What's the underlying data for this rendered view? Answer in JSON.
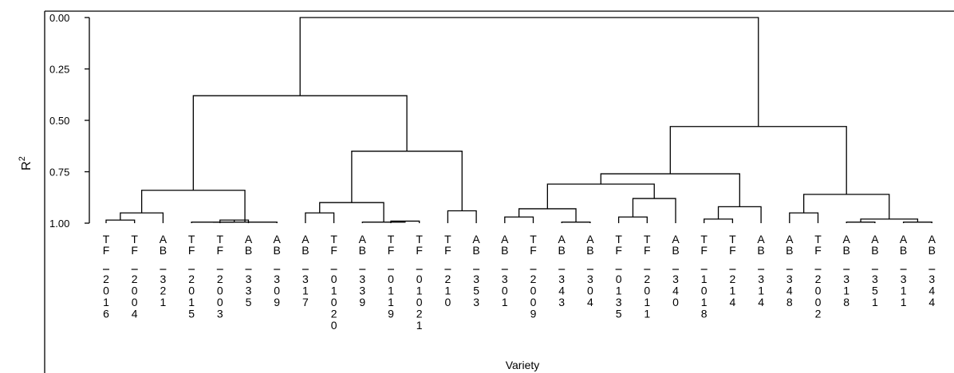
{
  "chart_data": {
    "type": "dendrogram",
    "title": "",
    "xlabel": "Variety",
    "ylabel": "R",
    "ylabel_superscript": "2",
    "yticks": [
      "0.00",
      "0.25",
      "0.50",
      "0.75",
      "1.00"
    ],
    "ylim": [
      0.0,
      1.0
    ],
    "y_inverted": true,
    "leaves": [
      {
        "prefix": "TF",
        "code": "2016"
      },
      {
        "prefix": "TF",
        "code": "2004"
      },
      {
        "prefix": "AB",
        "code": "321"
      },
      {
        "prefix": "TF",
        "code": "2015"
      },
      {
        "prefix": "TF",
        "code": "2003"
      },
      {
        "prefix": "AB",
        "code": "335"
      },
      {
        "prefix": "AB",
        "code": "309"
      },
      {
        "prefix": "AB",
        "code": "317"
      },
      {
        "prefix": "TF",
        "code": "01020"
      },
      {
        "prefix": "AB",
        "code": "339"
      },
      {
        "prefix": "TF",
        "code": "0119"
      },
      {
        "prefix": "TF",
        "code": "01021"
      },
      {
        "prefix": "TF",
        "code": "210"
      },
      {
        "prefix": "AB",
        "code": "353"
      },
      {
        "prefix": "AB",
        "code": "301"
      },
      {
        "prefix": "TF",
        "code": "2009"
      },
      {
        "prefix": "AB",
        "code": "343"
      },
      {
        "prefix": "AB",
        "code": "304"
      },
      {
        "prefix": "TF",
        "code": "0135"
      },
      {
        "prefix": "TF",
        "code": "2011"
      },
      {
        "prefix": "AB",
        "code": "340"
      },
      {
        "prefix": "TF",
        "code": "1018"
      },
      {
        "prefix": "TF",
        "code": "214"
      },
      {
        "prefix": "AB",
        "code": "314"
      },
      {
        "prefix": "AB",
        "code": "348"
      },
      {
        "prefix": "TF",
        "code": "2002"
      },
      {
        "prefix": "AB",
        "code": "318"
      },
      {
        "prefix": "AB",
        "code": "351"
      },
      {
        "prefix": "AB",
        "code": "311"
      },
      {
        "prefix": "AB",
        "code": "344"
      }
    ],
    "merges": [
      {
        "a": 0,
        "b": 1,
        "height": 0.985
      },
      {
        "a": "m0",
        "b": 2,
        "height": 0.95
      },
      {
        "a": 4,
        "b": 5,
        "height": 0.985
      },
      {
        "a": 3,
        "b": "m2",
        "height": 0.995
      },
      {
        "a": 6,
        "b": "m3",
        "height": 0.995
      },
      {
        "a": "m1",
        "b": "m4",
        "height": 0.84
      },
      {
        "a": 7,
        "b": 8,
        "height": 0.95
      },
      {
        "a": 10,
        "b": 11,
        "height": 0.99
      },
      {
        "a": 9,
        "b": "m7",
        "height": 0.995
      },
      {
        "a": "m6",
        "b": "m8",
        "height": 0.9
      },
      {
        "a": 12,
        "b": 13,
        "height": 0.94
      },
      {
        "a": "m9",
        "b": "m10",
        "height": 0.65
      },
      {
        "a": "m5",
        "b": "m11",
        "height": 0.38
      },
      {
        "a": 14,
        "b": 15,
        "height": 0.97
      },
      {
        "a": 16,
        "b": 17,
        "height": 0.995
      },
      {
        "a": "m13",
        "b": "m14",
        "height": 0.93
      },
      {
        "a": 18,
        "b": 19,
        "height": 0.97
      },
      {
        "a": "m16",
        "b": 20,
        "height": 0.88
      },
      {
        "a": "m15",
        "b": "m17",
        "height": 0.81
      },
      {
        "a": 21,
        "b": 22,
        "height": 0.98
      },
      {
        "a": "m19",
        "b": 23,
        "height": 0.92
      },
      {
        "a": "m18",
        "b": "m20",
        "height": 0.76
      },
      {
        "a": 24,
        "b": 25,
        "height": 0.95
      },
      {
        "a": 26,
        "b": 27,
        "height": 0.995
      },
      {
        "a": 28,
        "b": 29,
        "height": 0.995
      },
      {
        "a": "m23",
        "b": "m24",
        "height": 0.98
      },
      {
        "a": "m22",
        "b": "m25",
        "height": 0.86
      },
      {
        "a": "m21",
        "b": "m26",
        "height": 0.53
      },
      {
        "a": "m12",
        "b": "m27",
        "height": 0.0
      }
    ]
  }
}
